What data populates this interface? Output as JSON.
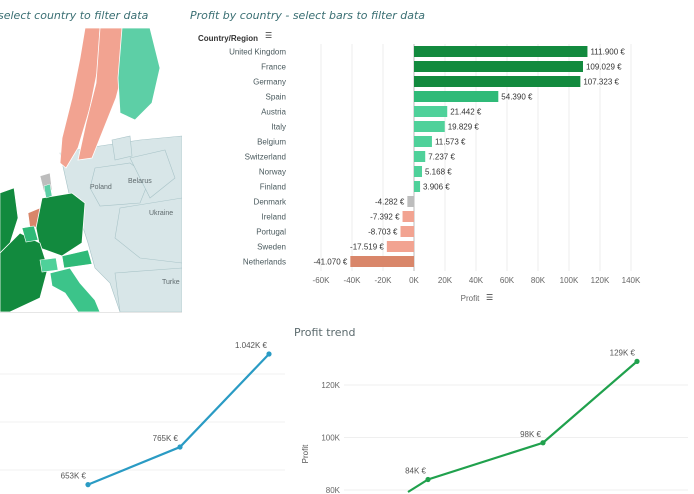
{
  "map_panel": {
    "title": "select country to filter data",
    "labels": [
      "Poland",
      "Belarus",
      "Ukraine",
      "Turke"
    ]
  },
  "bar_panel": {
    "title": "Profit by country - select bars to filter data",
    "column_header": "Country/Region",
    "axis_title": "Profit",
    "sort_icon": "sort-icon"
  },
  "trend_panel": {
    "title": "Profit trend",
    "y_axis_title": "Profit"
  },
  "colors": {
    "positive_dark": "#128a3e",
    "positive_mid": "#2fba78",
    "positive_light": "#4fd19a",
    "negative_light": "#f2a391",
    "negative_dark": "#d9866a",
    "neutral": "#bdbdbd",
    "trend_left": "#2a9bc4",
    "trend_right": "#20a14d"
  },
  "chart_data": [
    {
      "type": "bar",
      "orientation": "horizontal",
      "title": "Profit by country - select bars to filter data",
      "xlabel": "Profit",
      "ylabel": "Country/Region",
      "categories": [
        "United Kingdom",
        "France",
        "Germany",
        "Spain",
        "Austria",
        "Italy",
        "Belgium",
        "Switzerland",
        "Norway",
        "Finland",
        "Denmark",
        "Ireland",
        "Portugal",
        "Sweden",
        "Netherlands"
      ],
      "values": [
        111900,
        109029,
        107323,
        54390,
        21442,
        19829,
        11573,
        7237,
        5168,
        3906,
        -4282,
        -7392,
        -8703,
        -17519,
        -41070
      ],
      "value_labels": [
        "111.900 €",
        "109.029 €",
        "107.323 €",
        "54.390 €",
        "21.442 €",
        "19.829 €",
        "11.573 €",
        "7.237 €",
        "5.168 €",
        "3.906 €",
        "-4.282 €",
        "-7.392 €",
        "-8.703 €",
        "-17.519 €",
        "-41.070 €"
      ],
      "xlim": [
        -60000,
        140000
      ],
      "x_ticks": [
        "-60K",
        "-40K",
        "-20K",
        "0K",
        "20K",
        "40K",
        "60K",
        "80K",
        "100K",
        "120K",
        "140K"
      ],
      "grid": true
    },
    {
      "type": "line",
      "series": [
        {
          "values": [
            653,
            765,
            1042
          ]
        }
      ],
      "point_labels": [
        "653K €",
        "765K €",
        "1.042K €"
      ]
    },
    {
      "type": "line",
      "title": "Profit trend",
      "ylabel": "Profit",
      "series": [
        {
          "values": [
            84,
            98,
            129
          ]
        }
      ],
      "point_labels": [
        "84K €",
        "98K €",
        "129K €"
      ],
      "y_ticks": [
        "80K",
        "100K",
        "120K"
      ]
    }
  ]
}
